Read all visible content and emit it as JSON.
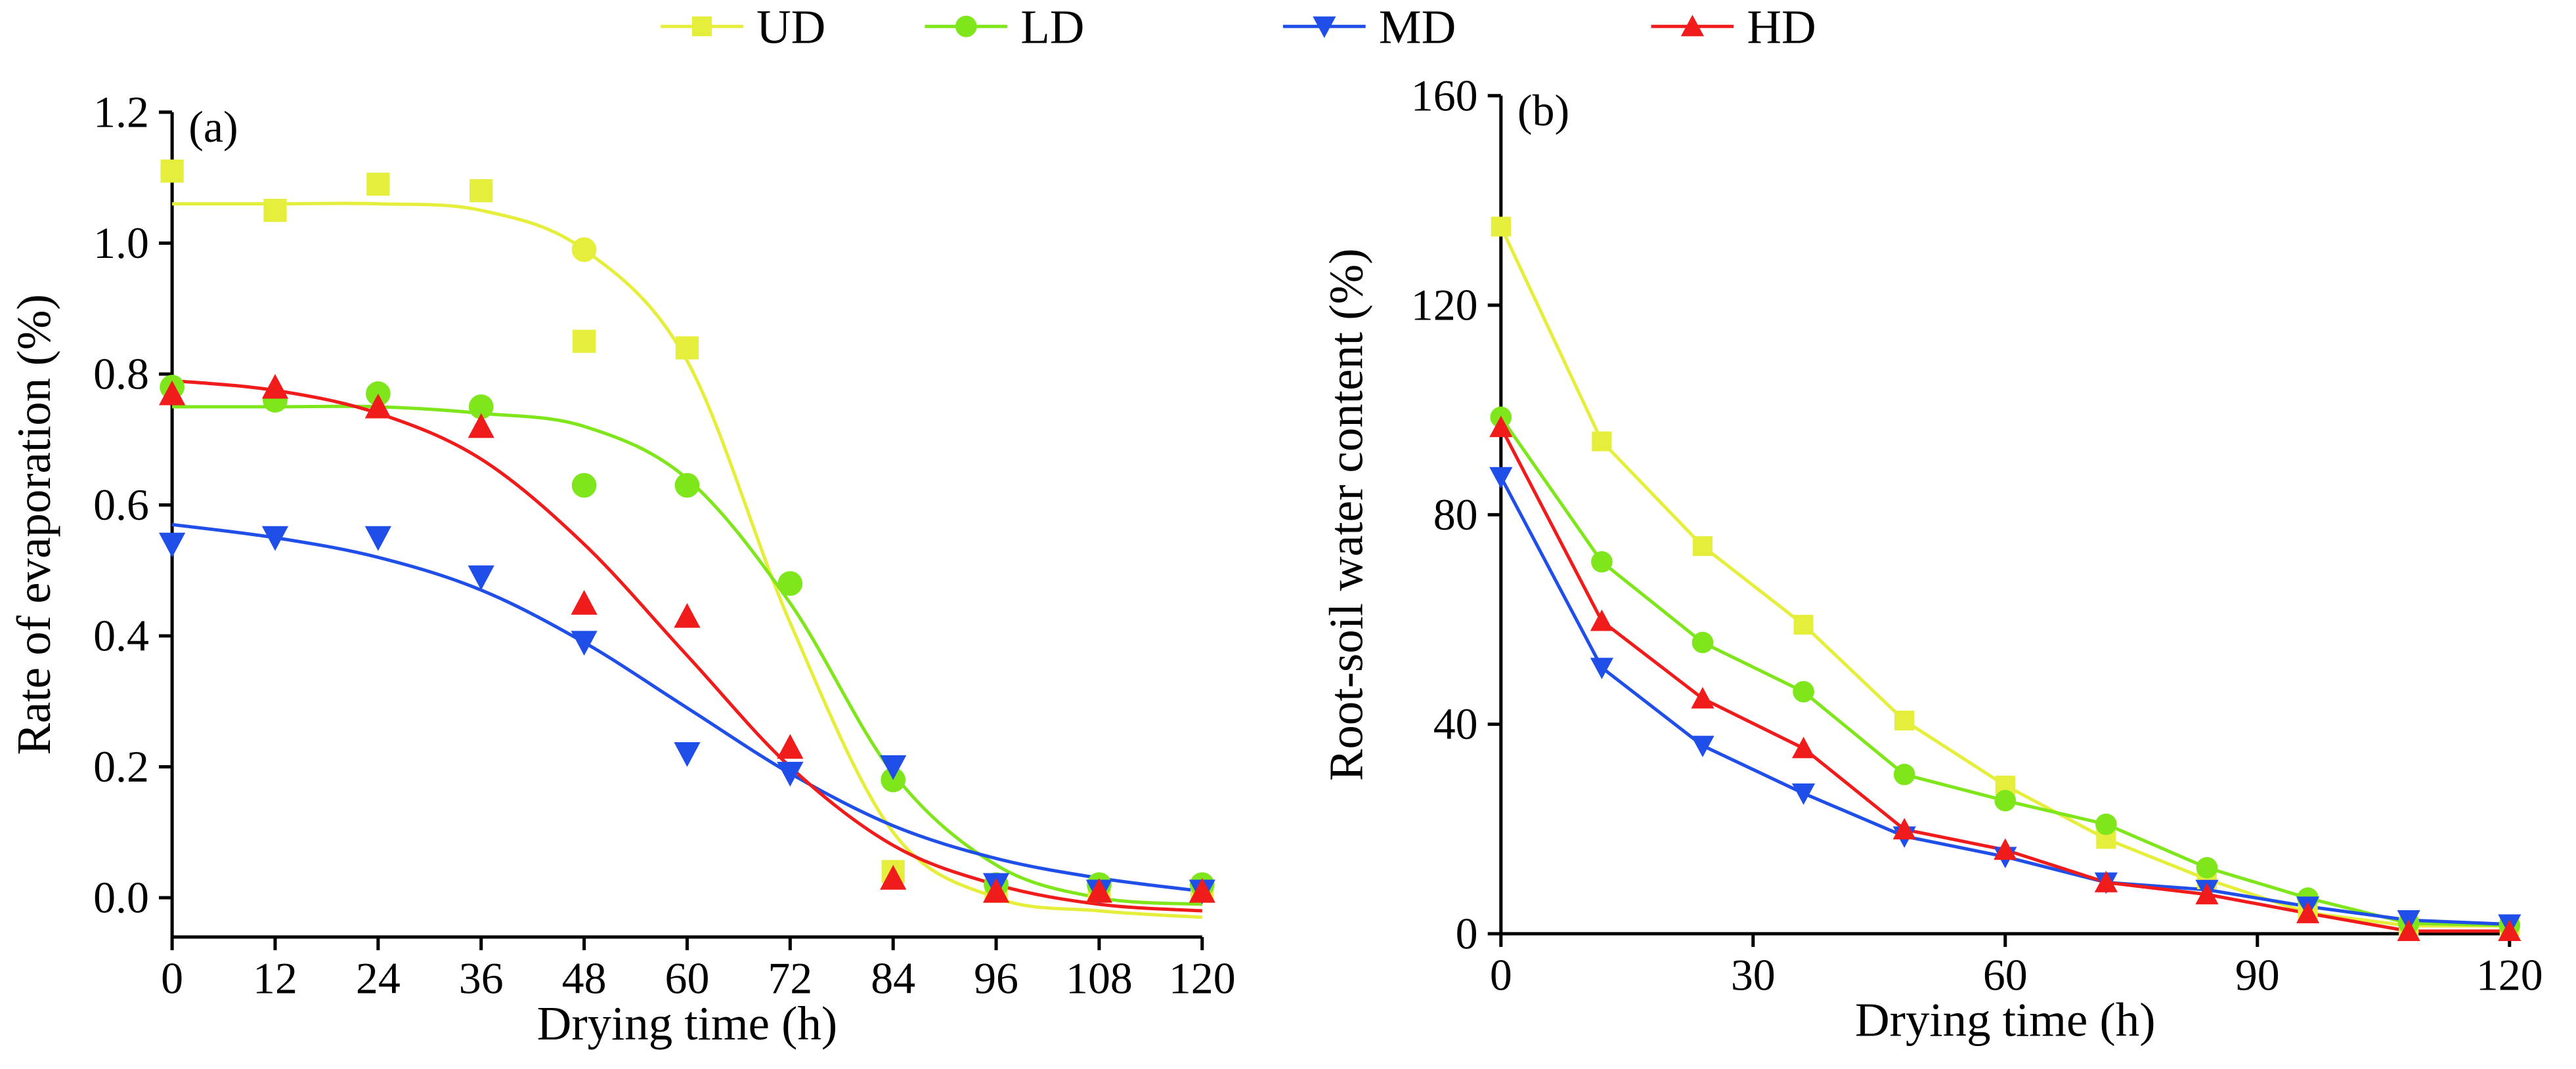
{
  "legend": {
    "position": "top",
    "items": [
      {
        "name": "UD",
        "color": "#e5ee3b",
        "marker": "square"
      },
      {
        "name": "LD",
        "color": "#7fe61c",
        "marker": "circle"
      },
      {
        "name": "MD",
        "color": "#1f4fe8",
        "marker": "triangle-down"
      },
      {
        "name": "HD",
        "color": "#f01b1b",
        "marker": "triangle-up"
      }
    ]
  },
  "chart_data": [
    {
      "type": "scatter",
      "panel_label": "(a)",
      "xlabel": "Drying time (h)",
      "ylabel": "Rate of evaporation (%)",
      "xlim": [
        0,
        120
      ],
      "ylim": [
        -0.06,
        1.2
      ],
      "xticks": [
        "0",
        "12",
        "24",
        "36",
        "48",
        "60",
        "72",
        "84",
        "96",
        "108",
        "120"
      ],
      "yticks": [
        "0.0",
        "0.2",
        "0.4",
        "0.6",
        "0.8",
        "1.0",
        "1.2"
      ],
      "grid": false,
      "x": [
        0,
        12,
        24,
        36,
        48,
        60,
        72,
        84,
        96,
        108,
        120
      ],
      "series": [
        {
          "name": "UD",
          "values": [
            1.11,
            1.05,
            1.09,
            1.08,
            0.85,
            0.84,
            null,
            0.04,
            0.01,
            0.01,
            0.01
          ],
          "fit": [
            1.06,
            1.06,
            1.06,
            1.05,
            0.99,
            0.82,
            0.42,
            0.1,
            0.0,
            -0.02,
            -0.03
          ]
        },
        {
          "name": "LD",
          "values": [
            0.78,
            0.76,
            0.77,
            0.75,
            0.63,
            0.63,
            0.48,
            0.18,
            0.02,
            0.02,
            0.02
          ],
          "fit": [
            0.75,
            0.75,
            0.75,
            0.74,
            0.72,
            0.64,
            0.45,
            0.19,
            0.05,
            0.0,
            -0.01
          ]
        },
        {
          "name": "MD",
          "values": [
            0.54,
            0.55,
            0.55,
            0.49,
            0.39,
            0.22,
            0.19,
            0.2,
            0.02,
            0.01,
            0.01
          ],
          "fit": [
            0.57,
            0.55,
            0.52,
            0.47,
            0.39,
            0.29,
            0.19,
            0.11,
            0.06,
            0.03,
            0.01
          ]
        },
        {
          "name": "HD",
          "values": [
            0.77,
            0.78,
            0.75,
            0.72,
            0.45,
            0.43,
            0.23,
            0.03,
            0.01,
            0.01,
            0.01
          ],
          "fit": [
            0.79,
            0.775,
            0.74,
            0.67,
            0.54,
            0.37,
            0.2,
            0.08,
            0.02,
            -0.01,
            -0.02
          ]
        }
      ],
      "extra_points": [
        {
          "series": "UD",
          "x": 48,
          "y": 0.99,
          "marker": "circle"
        }
      ]
    },
    {
      "type": "line",
      "panel_label": "(b)",
      "xlabel": "Drying time (h)",
      "ylabel": "Root-soil water content (%)",
      "xlim": [
        0,
        120
      ],
      "ylim": [
        0,
        160
      ],
      "xticks": [
        "0",
        "30",
        "60",
        "90",
        "120"
      ],
      "yticks": [
        "0",
        "40",
        "80",
        "120",
        "160"
      ],
      "grid": false,
      "x": [
        0,
        12,
        24,
        36,
        48,
        60,
        72,
        84,
        96,
        108,
        120
      ],
      "series": [
        {
          "name": "UD",
          "values": [
            135,
            94,
            74,
            59,
            40.7,
            28.3,
            18.1,
            10.4,
            4.0,
            1.5,
            1.5
          ]
        },
        {
          "name": "LD",
          "values": [
            98.6,
            71,
            55.6,
            46.2,
            30.4,
            25.4,
            20.9,
            12.6,
            6.8,
            2.0,
            1.6
          ]
        },
        {
          "name": "MD",
          "values": [
            87.2,
            50.8,
            35.9,
            26.8,
            18.6,
            14.7,
            9.8,
            8.4,
            5.2,
            2.6,
            1.8
          ]
        },
        {
          "name": "HD",
          "values": [
            96.7,
            59.7,
            44.9,
            35.4,
            19.9,
            16.0,
            9.8,
            7.5,
            3.9,
            0.5,
            0.5
          ]
        }
      ]
    }
  ]
}
